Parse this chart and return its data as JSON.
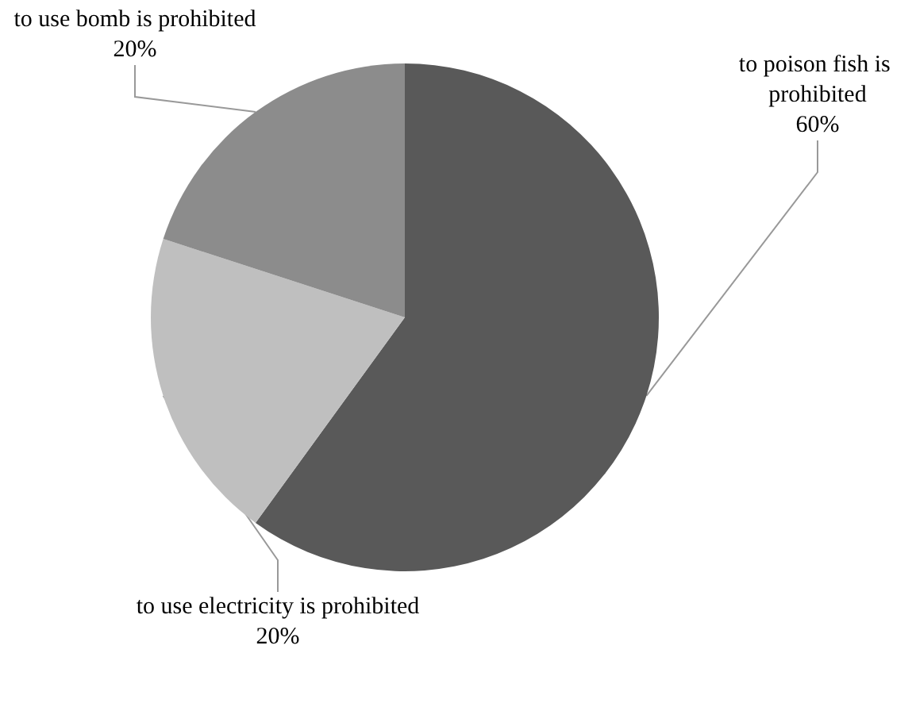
{
  "chart_data": {
    "type": "pie",
    "categories": [
      "to poison fish is prohibited",
      "to use electricity is prohibited",
      "to use bomb is prohibited"
    ],
    "values": [
      60,
      20,
      20
    ],
    "value_labels": [
      "60%",
      "20%",
      "20%"
    ],
    "colors": [
      "#595959",
      "#bfbfbf",
      "#8c8c8c"
    ],
    "legend": false
  }
}
